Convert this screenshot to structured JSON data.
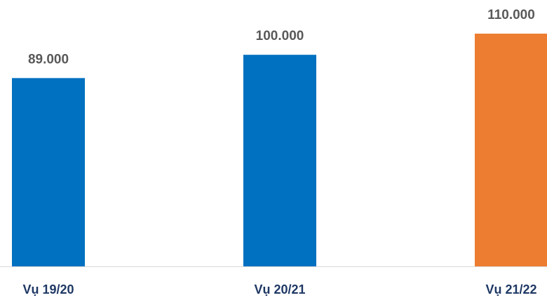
{
  "chart_data": {
    "type": "bar",
    "categories": [
      "Vụ 19/20",
      "Vụ 20/21",
      "Vụ 21/22"
    ],
    "values": [
      89000,
      100000,
      110000
    ],
    "value_labels": [
      "89.000",
      "100.000",
      "110.000"
    ],
    "colors": [
      "#0070c0",
      "#0070c0",
      "#ed7d31"
    ]
  }
}
